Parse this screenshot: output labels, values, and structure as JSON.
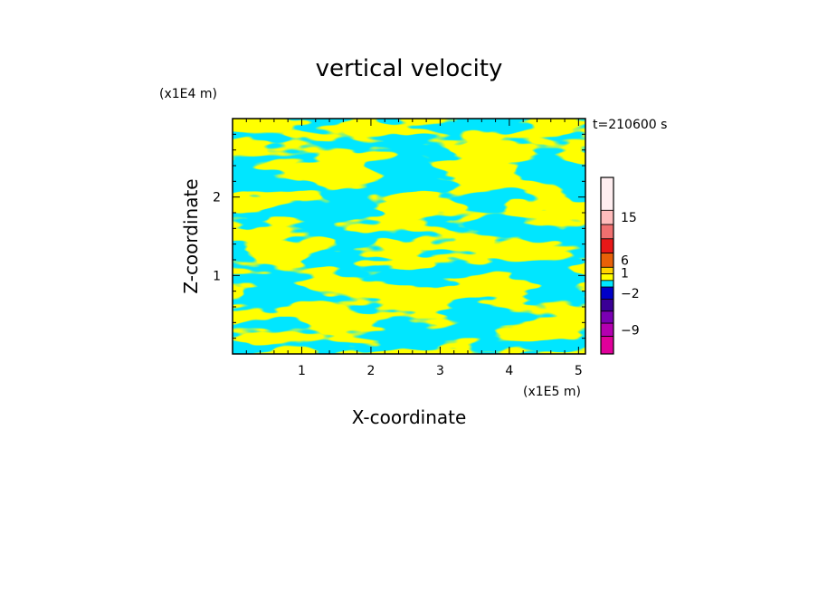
{
  "chart_data": {
    "type": "heatmap",
    "title": "vertical velocity",
    "xlabel": "X-coordinate",
    "ylabel": "Z-coordinate",
    "x_multiplier": "(x1E5 m)",
    "y_multiplier": "(x1E4 m)",
    "time_label": "t=210600 s",
    "xlim": [
      0,
      5.1
    ],
    "ylim": [
      0,
      3.0
    ],
    "x_ticks": [
      "1",
      "2",
      "3",
      "4",
      "5"
    ],
    "y_ticks": [
      "1",
      "2"
    ],
    "grid": false,
    "fill_colors": {
      "positive": "#ffff00",
      "negative": "#00e6ff"
    },
    "colorbar": {
      "tick_labels": [
        "15",
        "6",
        "1",
        "−2",
        "−9"
      ],
      "tick_values": [
        15,
        6,
        1,
        -2,
        -9
      ],
      "levels": [
        {
          "color": "#ffeef0"
        },
        {
          "color": "#ffbcbc"
        },
        {
          "color": "#f07070"
        },
        {
          "color": "#e81818"
        },
        {
          "color": "#e86008"
        },
        {
          "color": "#ffd400"
        },
        {
          "color": "#ffff00"
        },
        {
          "color": "#00e6ff"
        },
        {
          "color": "#0000c8"
        },
        {
          "color": "#3a0096"
        },
        {
          "color": "#7a00b4"
        },
        {
          "color": "#b400b0"
        },
        {
          "color": "#e0009a"
        }
      ]
    }
  }
}
